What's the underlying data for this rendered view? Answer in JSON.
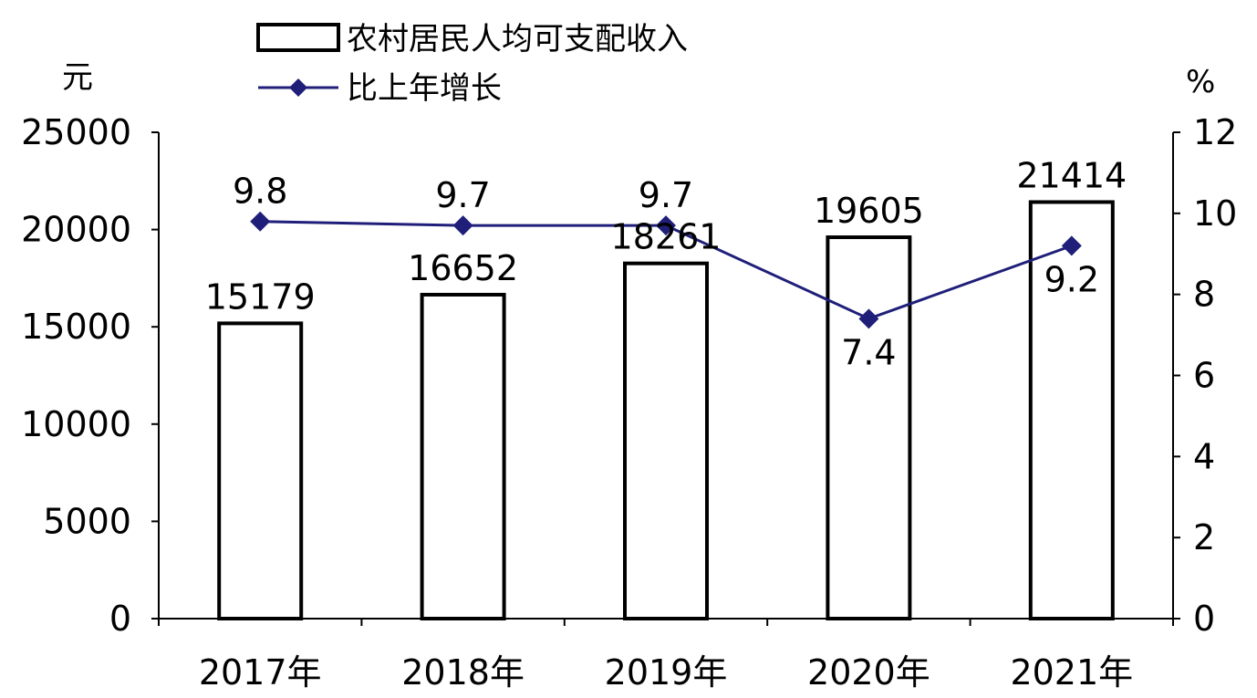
{
  "chart_data": {
    "type": "bar+line",
    "categories": [
      "2017年",
      "2018年",
      "2019年",
      "2020年",
      "2021年"
    ],
    "series": [
      {
        "name": "农村居民人均可支配收入",
        "type": "bar",
        "axis": "left",
        "values": [
          15179,
          16652,
          18261,
          19605,
          21414
        ],
        "labels": [
          "15179",
          "16652",
          "18261",
          "19605",
          "21414"
        ]
      },
      {
        "name": "比上年增长",
        "type": "line",
        "axis": "right",
        "values": [
          9.8,
          9.7,
          9.7,
          7.4,
          9.2
        ],
        "labels": [
          "9.8",
          "9.7",
          "9.7",
          "7.4",
          "9.2"
        ],
        "color": "#1f1f7a"
      }
    ],
    "left_axis": {
      "unit": "元",
      "ylim": [
        0,
        25000
      ],
      "ticks": [
        "0",
        "5000",
        "10000",
        "15000",
        "20000",
        "25000"
      ]
    },
    "right_axis": {
      "unit": "%",
      "ylim": [
        0,
        12
      ],
      "ticks": [
        "0",
        "2",
        "4",
        "6",
        "8",
        "10",
        "12"
      ]
    },
    "grid": false,
    "legend_position": "top-center"
  }
}
